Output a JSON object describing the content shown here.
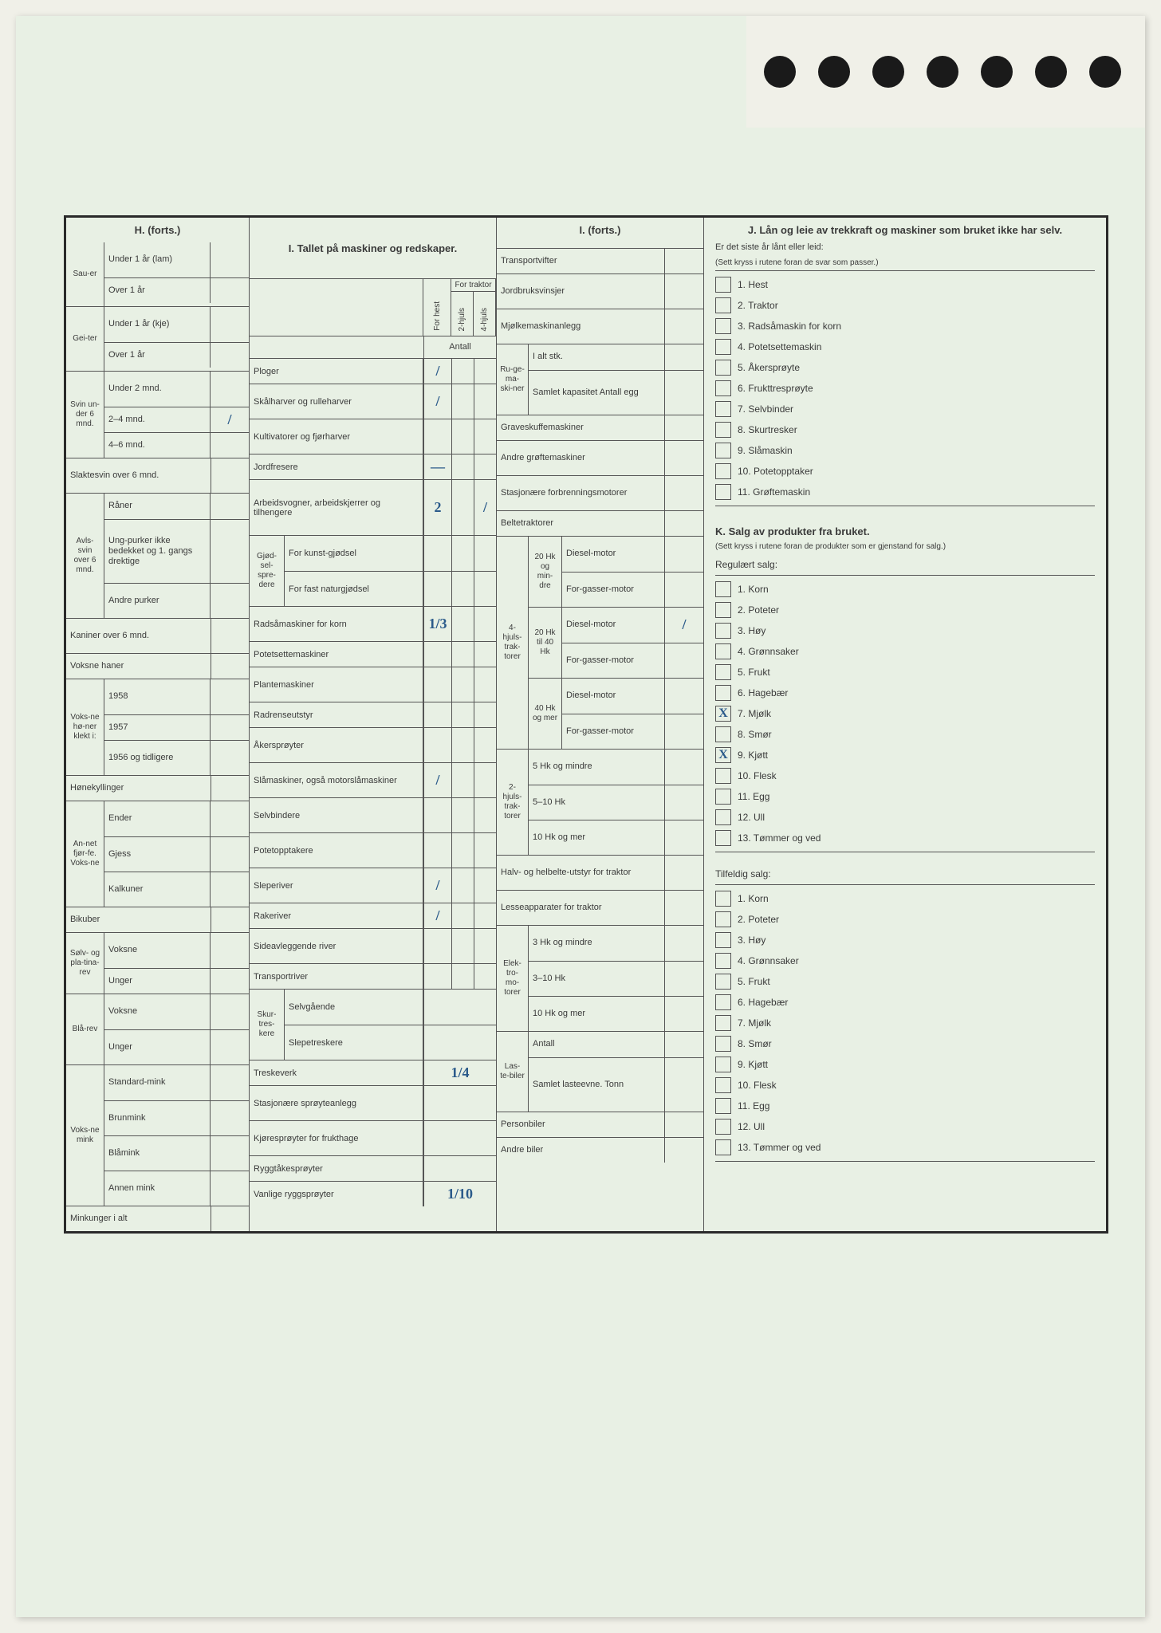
{
  "H": {
    "title": "H. (forts.)",
    "sauer": {
      "label": "Sau-er",
      "u1": "Under 1 år (lam)",
      "o1": "Over 1 år"
    },
    "geiter": {
      "label": "Gei-ter",
      "u1": "Under 1 år (kje)",
      "o1": "Over 1 år"
    },
    "svin": {
      "label": "Svin un-der 6 mnd.",
      "u2": "Under 2 mnd.",
      "m24": "2–4 mnd.",
      "m24_val": "/",
      "m46": "4–6 mnd."
    },
    "slakte": "Slaktesvin over 6 mnd.",
    "avlssvin": {
      "label": "Avls-svin over 6 mnd.",
      "raner": "Råner",
      "ung": "Ung-purker ikke bedekket og 1. gangs drektige",
      "andre": "Andre purker"
    },
    "kaniner": "Kaniner over 6 mnd.",
    "haner": "Voksne haner",
    "honer": {
      "label": "Voks-ne hø-ner klekt i:",
      "y1958": "1958",
      "y1957": "1957",
      "y1956": "1956 og tidligere"
    },
    "honekyll": "Hønekyllinger",
    "annet": {
      "label": "An-net fjør-fe. Voks-ne",
      "ender": "Ender",
      "gjess": "Gjess",
      "kalk": "Kalkuner"
    },
    "bikuber": "Bikuber",
    "solvrev": {
      "label": "Sølv- og pla-tina-rev",
      "v": "Voksne",
      "u": "Unger"
    },
    "blarev": {
      "label": "Blå-rev",
      "v": "Voksne",
      "u": "Unger"
    },
    "mink": {
      "label": "Voks-ne mink",
      "std": "Standard-mink",
      "brun": "Brunmink",
      "bla": "Blåmink",
      "annen": "Annen mink"
    },
    "minkunger": "Minkunger i alt"
  },
  "I": {
    "title": "I. Tallet på maskiner og redskaper.",
    "head": {
      "forhest": "For hest",
      "t2": "2-hjuls",
      "t4": "4-hjuls",
      "fortraktor": "For traktor",
      "antall": "Antall"
    },
    "rows": {
      "ploger": {
        "label": "Ploger",
        "hest": "/"
      },
      "skal": {
        "label": "Skålharver og rulleharver",
        "hest": "/"
      },
      "kult": {
        "label": "Kultivatorer og fjørharver"
      },
      "jord": {
        "label": "Jordfresere",
        "hest": "—"
      },
      "arb": {
        "label": "Arbeidsvogner, arbeidskjerrer og tilhengere",
        "hest": "2",
        "t4": "/"
      },
      "gjod": {
        "side": "Gjød-sel-spre-dere",
        "kunst": "For kunst-gjødsel",
        "fast": "For fast naturgjødsel"
      },
      "rad": {
        "label": "Radsåmaskiner for korn",
        "hest": "1/3"
      },
      "potet": {
        "label": "Potetsettemaskiner"
      },
      "plante": {
        "label": "Plantemaskiner"
      },
      "radrense": {
        "label": "Radrenseutstyr"
      },
      "aker": {
        "label": "Åkersprøyter"
      },
      "sla": {
        "label": "Slåmaskiner, også motorslåmaskiner",
        "hest": "/"
      },
      "selvb": {
        "label": "Selvbindere"
      },
      "potetopp": {
        "label": "Potetopptakere"
      },
      "slepe": {
        "label": "Sleperiver",
        "hest": "/"
      },
      "rake": {
        "label": "Rakeriver",
        "hest": "/"
      },
      "sideav": {
        "label": "Sideavleggende river"
      },
      "transp": {
        "label": "Transportriver"
      },
      "skur": {
        "side": "Skur-tres-kere",
        "selv": "Selvgående",
        "slepetr": "Slepetreskere"
      },
      "treske": {
        "label": "Treskeverk",
        "col1": "1/4"
      },
      "stasj": {
        "label": "Stasjonære sprøyteanlegg"
      },
      "kjore": {
        "label": "Kjøresprøyter for frukthage"
      },
      "rygg": {
        "label": "Ryggtåkesprøyter"
      },
      "vanl": {
        "label": "Vanlige ryggsprøyter",
        "col1": "1/10"
      }
    }
  },
  "Ic": {
    "title": "I. (forts.)",
    "transport": "Transportvifter",
    "jordbruk": "Jordbruksvinsjer",
    "mjolke": "Mjølkemaskinanlegg",
    "ruge": {
      "label": "Ru-ge-ma-ski-ner",
      "ialt": "I alt stk.",
      "samlet": "Samlet kapasitet Antall egg"
    },
    "grave": "Graveskuffemaskiner",
    "andre": "Andre grøftemaskiner",
    "stasj": "Stasjonære forbrenningsmotorer",
    "belte": "Beltetraktorer",
    "trak4": {
      "label": "4-hjuls-trak-torer",
      "g20": {
        "hk": "20 Hk og min-dre",
        "d": "Diesel-motor",
        "f": "For-gasser-motor"
      },
      "g2040": {
        "hk": "20 Hk til 40 Hk",
        "d": "Diesel-motor",
        "d_val": "/",
        "f": "For-gasser-motor"
      },
      "g40": {
        "hk": "40 Hk og mer",
        "d": "Diesel-motor",
        "f": "For-gasser-motor"
      }
    },
    "trak2": {
      "label": "2-hjuls-trak-torer",
      "h5": "5 Hk og mindre",
      "h510": "5–10 Hk",
      "h10": "10 Hk og mer"
    },
    "halv": "Halv- og helbelte-utstyr for traktor",
    "lesse": "Lesseapparater for traktor",
    "elektro": {
      "label": "Elek-tro-mo-torer",
      "h3": "3 Hk og mindre",
      "h310": "3–10 Hk",
      "h10": "10 Hk og mer"
    },
    "laste": {
      "label": "Las-te-biler",
      "antall": "Antall",
      "samlet": "Samlet lasteevne. Tonn"
    },
    "person": "Personbiler",
    "andrebil": "Andre biler"
  },
  "J": {
    "title": "J. Lån og leie av trekkraft og maskiner som bruket ikke har selv.",
    "sub": "Er det siste år lånt eller leid:",
    "note": "(Sett kryss i rutene foran de svar som passer.)",
    "items": [
      "1. Hest",
      "2. Traktor",
      "3. Radsåmaskin for korn",
      "4. Potetsettemaskin",
      "5. Åkersprøyte",
      "6. Frukttresprøyte",
      "7. Selvbinder",
      "8. Skurtresker",
      "9. Slåmaskin",
      "10. Potetopptaker",
      "11. Grøftemaskin"
    ]
  },
  "K": {
    "title": "K. Salg av produkter fra bruket.",
    "note": "(Sett kryss i rutene foran de produkter som er gjenstand for salg.)",
    "reg_label": "Regulært salg:",
    "reg": [
      {
        "t": "1. Korn"
      },
      {
        "t": "2. Poteter"
      },
      {
        "t": "3. Høy"
      },
      {
        "t": "4. Grønnsaker"
      },
      {
        "t": "5. Frukt"
      },
      {
        "t": "6. Hagebær"
      },
      {
        "t": "7. Mjølk",
        "x": "X"
      },
      {
        "t": "8. Smør"
      },
      {
        "t": "9. Kjøtt",
        "x": "X"
      },
      {
        "t": "10. Flesk"
      },
      {
        "t": "11. Egg"
      },
      {
        "t": "12. Ull"
      },
      {
        "t": "13. Tømmer og ved"
      }
    ],
    "til_label": "Tilfeldig salg:",
    "til": [
      {
        "t": "1. Korn"
      },
      {
        "t": "2. Poteter"
      },
      {
        "t": "3. Høy"
      },
      {
        "t": "4. Grønnsaker"
      },
      {
        "t": "5. Frukt"
      },
      {
        "t": "6. Hagebær"
      },
      {
        "t": "7. Mjølk"
      },
      {
        "t": "8. Smør"
      },
      {
        "t": "9. Kjøtt"
      },
      {
        "t": "10. Flesk"
      },
      {
        "t": "11. Egg"
      },
      {
        "t": "12. Ull"
      },
      {
        "t": "13. Tømmer og ved"
      }
    ]
  }
}
